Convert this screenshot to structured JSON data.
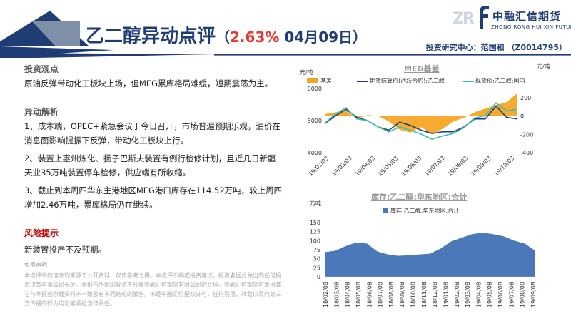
{
  "header": {
    "title": "乙二醇异动点评",
    "paren_open": "（",
    "change_pct": "2.63%",
    "date": " 04月09日",
    "paren_close": "）",
    "logo_letter": "ZR",
    "logo_name": "中融汇信期货",
    "logo_en": "ZHONG RONG HUI XIN FUTURES",
    "author": "投资研究中心：范国和 （Z0014795）",
    "colors": {
      "navy": "#1f3c74",
      "red": "#e23b30",
      "steel": "#7f8fa8"
    }
  },
  "left": {
    "view_head": "投资观点",
    "view_text": "原油反弹带动化工板块上场，但MEG累库格局难缓，短期震荡为主。",
    "analysis_head": "异动解析",
    "analysis": [
      "1、成本端，OPEC+紧急会议于今日召开，市场普遍预期乐观，油价在消息面影响提振下反弹，带动化工板块上行。",
      "2、装置上惠州炼化、扬子巴斯夫装置有例行检修计划，且近几日新疆天业35万吨装置停车检修，供应端有所收缩。",
      "3、截止到本周四华东主港地区MEG港口库存在114.52万吨，较上周四增加2.46万吨，累库格局仍在继续。"
    ],
    "risk_head": "风险提示",
    "risk_text": "新装置投产不及预期。",
    "disclaimer_title": "免责声明",
    "disclaimer": "本点评中的信息均来源于公开资料，仅作参考之用。本点评不构成投资建议，投资者据此做出的任何投资决策与本公司无关。本报告所载的观点不代表中融汇信期货有限公司的立场。中融汇信期货可发出其它与本报告所载资料不一致及有不同结论的报告。未经中融汇信授权许可，任何引用、转载以及向第三方传播的行为均可能承担法律责任。"
  },
  "chart_data": [
    {
      "type": "line",
      "title": "MEG基差",
      "ylabel_left": "元/吨",
      "ylabel_right": "元/吨",
      "ylim_left": [
        4000,
        6000
      ],
      "yticks_left": [
        4000,
        5000,
        6000
      ],
      "ylim_right": [
        -400,
        300
      ],
      "yticks_right": [
        -400,
        -200,
        0,
        200
      ],
      "xticks": [
        "19/02/03",
        "19/03/03",
        "19/04/03",
        "19/05/03",
        "19/06/03",
        "19/07/03",
        "19/08/03",
        "19/09/03",
        "19/10/03"
      ],
      "x": [
        "19/02/03",
        "19/02/17",
        "19/03/03",
        "19/03/17",
        "19/04/03",
        "19/04/17",
        "19/05/03",
        "19/05/17",
        "19/06/03",
        "19/06/17",
        "19/07/03",
        "19/07/17",
        "19/08/03",
        "19/08/17",
        "19/09/03",
        "19/09/17",
        "19/09/27",
        "19/10/03",
        "19/10/17"
      ],
      "series": [
        {
          "name": "基差",
          "axis": "right",
          "kind": "area",
          "color": "#f5a623",
          "values": [
            20,
            40,
            60,
            -30,
            10,
            0,
            -60,
            -150,
            -180,
            -120,
            -200,
            -140,
            -60,
            -20,
            40,
            80,
            120,
            150,
            250
          ]
        },
        {
          "name": "期货结算价(活跃合约):乙二醇",
          "axis": "left",
          "kind": "line",
          "color": "#1f3c74",
          "values": [
            4900,
            5150,
            5350,
            5100,
            5000,
            4800,
            4700,
            4950,
            4850,
            4700,
            4600,
            4650,
            4650,
            4800,
            5050,
            5050,
            5450,
            5100,
            5050
          ]
        },
        {
          "name": "现货价:乙二醇:国内",
          "axis": "left",
          "kind": "line",
          "color": "#3bbfad",
          "values": [
            4920,
            5200,
            5400,
            5050,
            5000,
            4800,
            4650,
            4800,
            4700,
            4580,
            4420,
            4520,
            4600,
            4780,
            5080,
            5150,
            5550,
            5300,
            5350
          ]
        }
      ]
    },
    {
      "type": "area",
      "title": "库存:乙二醇:华东地区:合计",
      "ylabel": "万吨",
      "ylim": [
        0,
        150
      ],
      "yticks": [
        0,
        25,
        50,
        75,
        100,
        125,
        150
      ],
      "xticks": [
        "18/02/08",
        "18/03/08",
        "18/04/08",
        "18/05/08",
        "18/06/08",
        "18/07/08",
        "18/08/08",
        "18/09/08",
        "18/10/08",
        "18/11/08",
        "18/12/08",
        "19/01/08",
        "19/02/08",
        "19/03/08",
        "19/04/08",
        "19/05/08",
        "19/06/08",
        "19/07/08",
        "19/08/08",
        "19/09/08"
      ],
      "series": [
        {
          "name": "库存:乙二醇:华东地区:合计",
          "color": "#4a78b8",
          "values": [
            68,
            72,
            85,
            95,
            92,
            70,
            62,
            58,
            60,
            62,
            64,
            78,
            98,
            108,
            118,
            122,
            118,
            112,
            100,
            92,
            72
          ]
        }
      ]
    }
  ]
}
